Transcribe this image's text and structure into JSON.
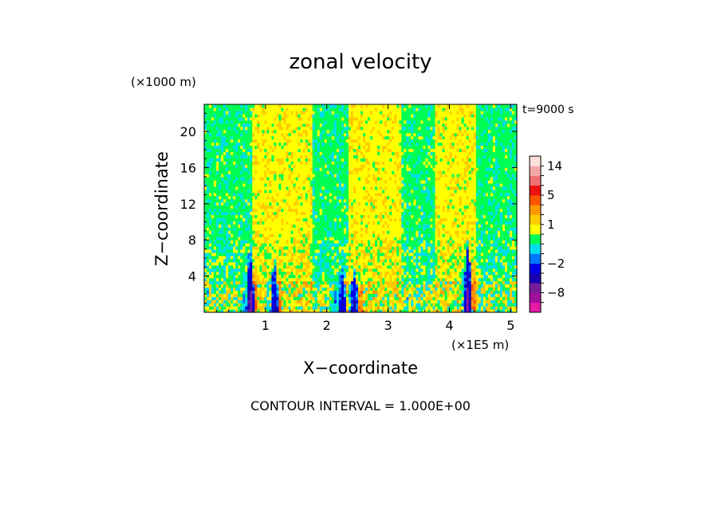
{
  "chart_data": {
    "type": "heatmap",
    "title": "zonal velocity",
    "time_label": "t=9000 s",
    "xlabel": "X−coordinate",
    "ylabel": "Z−coordinate",
    "x_unit": "(×1E5 m)",
    "y_unit": "(×1000 m)",
    "xlim": [
      0,
      5.1
    ],
    "ylim": [
      0,
      23
    ],
    "x_ticks": [
      1,
      2,
      3,
      4,
      5
    ],
    "x_tick_labels": [
      "1",
      "2",
      "3",
      "4",
      "5"
    ],
    "y_ticks": [
      4,
      8,
      12,
      16,
      20
    ],
    "y_tick_labels": [
      "4",
      "8",
      "12",
      "16",
      "20"
    ],
    "contour_interval": 1.0,
    "footer": "CONTOUR INTERVAL = 1.000E+00",
    "colorbar": {
      "levels": [
        {
          "from": -16,
          "to": -11,
          "color": "#e61aa6"
        },
        {
          "from": -11,
          "to": -8,
          "color": "#a0109a"
        },
        {
          "from": -8,
          "to": -6,
          "color": "#7a1b9c"
        },
        {
          "from": -6,
          "to": -4,
          "color": "#1900b0"
        },
        {
          "from": -4,
          "to": -2,
          "color": "#0000e6"
        },
        {
          "from": -2,
          "to": -1,
          "color": "#0077ff"
        },
        {
          "from": -1,
          "to": 0,
          "color": "#00ddee"
        },
        {
          "from": 0,
          "to": 0.5,
          "color": "#00ff55"
        },
        {
          "from": 0.5,
          "to": 1,
          "color": "#ffff00"
        },
        {
          "from": 1,
          "to": 2,
          "color": "#ffcc00"
        },
        {
          "from": 2,
          "to": 3,
          "color": "#ff9900"
        },
        {
          "from": 3,
          "to": 5,
          "color": "#ff5500"
        },
        {
          "from": 5,
          "to": 8,
          "color": "#ee1111"
        },
        {
          "from": 8,
          "to": 11,
          "color": "#f07070"
        },
        {
          "from": 11,
          "to": 14,
          "color": "#f4a6a6"
        },
        {
          "from": 14,
          "to": 18,
          "color": "#fde0dc"
        }
      ],
      "labels": [
        {
          "value": 14,
          "text": "14"
        },
        {
          "value": 5,
          "text": "5"
        },
        {
          "value": 1,
          "text": "1"
        },
        {
          "value": -2,
          "text": "−2"
        },
        {
          "value": -8,
          "text": "−8"
        }
      ]
    },
    "field_bands": [
      {
        "x0": 0.0,
        "x1": 0.78,
        "value": 0.2
      },
      {
        "x0": 0.78,
        "x1": 1.75,
        "value": 0.8
      },
      {
        "x0": 1.75,
        "x1": 2.35,
        "value": 0.2
      },
      {
        "x0": 2.35,
        "x1": 3.2,
        "value": 0.8
      },
      {
        "x0": 3.2,
        "x1": 3.75,
        "value": 0.2
      },
      {
        "x0": 3.75,
        "x1": 4.45,
        "value": 0.8
      },
      {
        "x0": 4.45,
        "x1": 5.1,
        "value": 0.2
      }
    ],
    "jets": [
      {
        "x": 0.75,
        "top": 7.5,
        "min": -10
      },
      {
        "x": 1.15,
        "top": 6.0,
        "min": -6
      },
      {
        "x": 2.25,
        "top": 6.0,
        "min": -5
      },
      {
        "x": 2.45,
        "top": 5.0,
        "min": -6
      },
      {
        "x": 4.3,
        "top": 8.0,
        "min": -9
      }
    ]
  }
}
